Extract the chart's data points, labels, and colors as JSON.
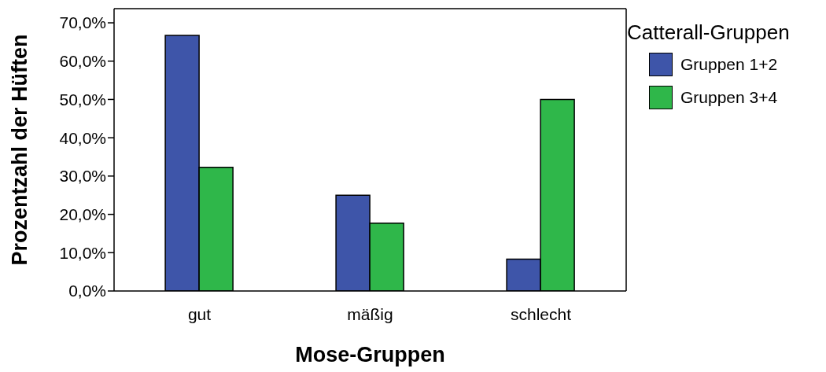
{
  "chart_data": {
    "type": "bar",
    "xlabel": "Mose-Gruppen",
    "ylabel": "Prozentzahl der Hüften",
    "legend_title": "Catterall-Gruppen",
    "categories": [
      "gut",
      "mäßig",
      "schlecht"
    ],
    "series": [
      {
        "name": "Gruppen 1+2",
        "color": "#3e55a9",
        "values": [
          66.7,
          25.0,
          8.3
        ]
      },
      {
        "name": "Gruppen 3+4",
        "color": "#2fb74a",
        "values": [
          32.3,
          17.7,
          50.0
        ]
      }
    ],
    "ylim": [
      0,
      73.7
    ],
    "yticks": [
      {
        "value": 0,
        "label": "0,0%"
      },
      {
        "value": 10,
        "label": "10,0%"
      },
      {
        "value": 20,
        "label": "20,0%"
      },
      {
        "value": 30,
        "label": "30,0%"
      },
      {
        "value": 40,
        "label": "40,0%"
      },
      {
        "value": 50,
        "label": "50,0%"
      },
      {
        "value": 60,
        "label": "60,0%"
      },
      {
        "value": 70,
        "label": "70,0%"
      }
    ],
    "grid": false,
    "legend": "top right"
  }
}
